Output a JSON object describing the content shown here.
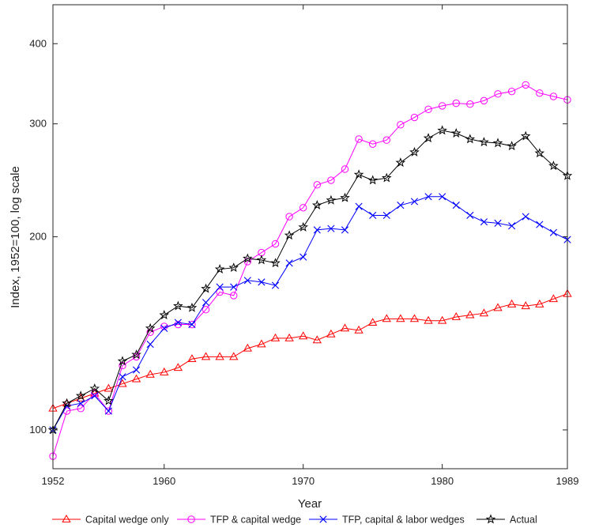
{
  "chart_data": {
    "type": "line",
    "title": "",
    "xlabel": "Year",
    "ylabel": "Index, 1952=100, log scale",
    "yscale": "log",
    "xlim": [
      1952,
      1989
    ],
    "ylim": [
      87,
      460
    ],
    "grid": false,
    "legend_position": "bottom",
    "x_ticks": [
      1952,
      1960,
      1970,
      1980,
      1989
    ],
    "y_ticks": [
      100,
      200,
      300,
      400
    ],
    "x": [
      1952,
      1953,
      1954,
      1955,
      1956,
      1957,
      1958,
      1959,
      1960,
      1961,
      1962,
      1963,
      1964,
      1965,
      1966,
      1967,
      1968,
      1969,
      1970,
      1971,
      1972,
      1973,
      1974,
      1975,
      1976,
      1977,
      1978,
      1979,
      1980,
      1981,
      1982,
      1983,
      1984,
      1985,
      1986,
      1987,
      1988,
      1989
    ],
    "series": [
      {
        "name": "Capital wedge only",
        "color": "#ff0000",
        "marker": "triangle",
        "values": [
          108,
          110,
          112,
          114,
          116,
          118,
          120,
          122,
          123,
          125,
          129,
          130,
          130,
          130,
          134,
          136,
          139,
          139,
          140,
          138,
          141,
          144,
          143,
          147,
          149,
          149,
          149,
          148,
          148,
          150,
          151,
          152,
          155,
          157,
          156,
          157,
          160,
          163
        ]
      },
      {
        "name": "TFP & capital wedge",
        "color": "#ff00ff",
        "marker": "circle",
        "values": [
          91,
          107,
          108,
          114,
          107,
          126,
          130,
          142,
          145,
          146,
          146,
          154,
          164,
          162,
          183,
          189,
          195,
          215,
          222,
          241,
          245,
          255,
          284,
          279,
          283,
          299,
          307,
          316,
          320,
          323,
          322,
          326,
          334,
          337,
          345,
          335,
          331,
          327
        ]
      },
      {
        "name": "TFP, capital & labor wedges",
        "color": "#0000ff",
        "marker": "x",
        "values": [
          100,
          109,
          110,
          113,
          107,
          121,
          124,
          136,
          144,
          147,
          146,
          158,
          167,
          167,
          171,
          170,
          168,
          182,
          186,
          205,
          206,
          205,
          223,
          216,
          216,
          224,
          227,
          231,
          231,
          224,
          216,
          211,
          210,
          208,
          215,
          209,
          203,
          198
        ]
      },
      {
        "name": "Actual",
        "color": "#000000",
        "marker": "star",
        "values": [
          100,
          110,
          113,
          116,
          111,
          128,
          131,
          144,
          151,
          156,
          155,
          166,
          178,
          179,
          185,
          184,
          182,
          201,
          207,
          224,
          228,
          230,
          250,
          245,
          247,
          261,
          271,
          285,
          293,
          290,
          284,
          281,
          280,
          277,
          287,
          270,
          258,
          249
        ]
      }
    ]
  }
}
